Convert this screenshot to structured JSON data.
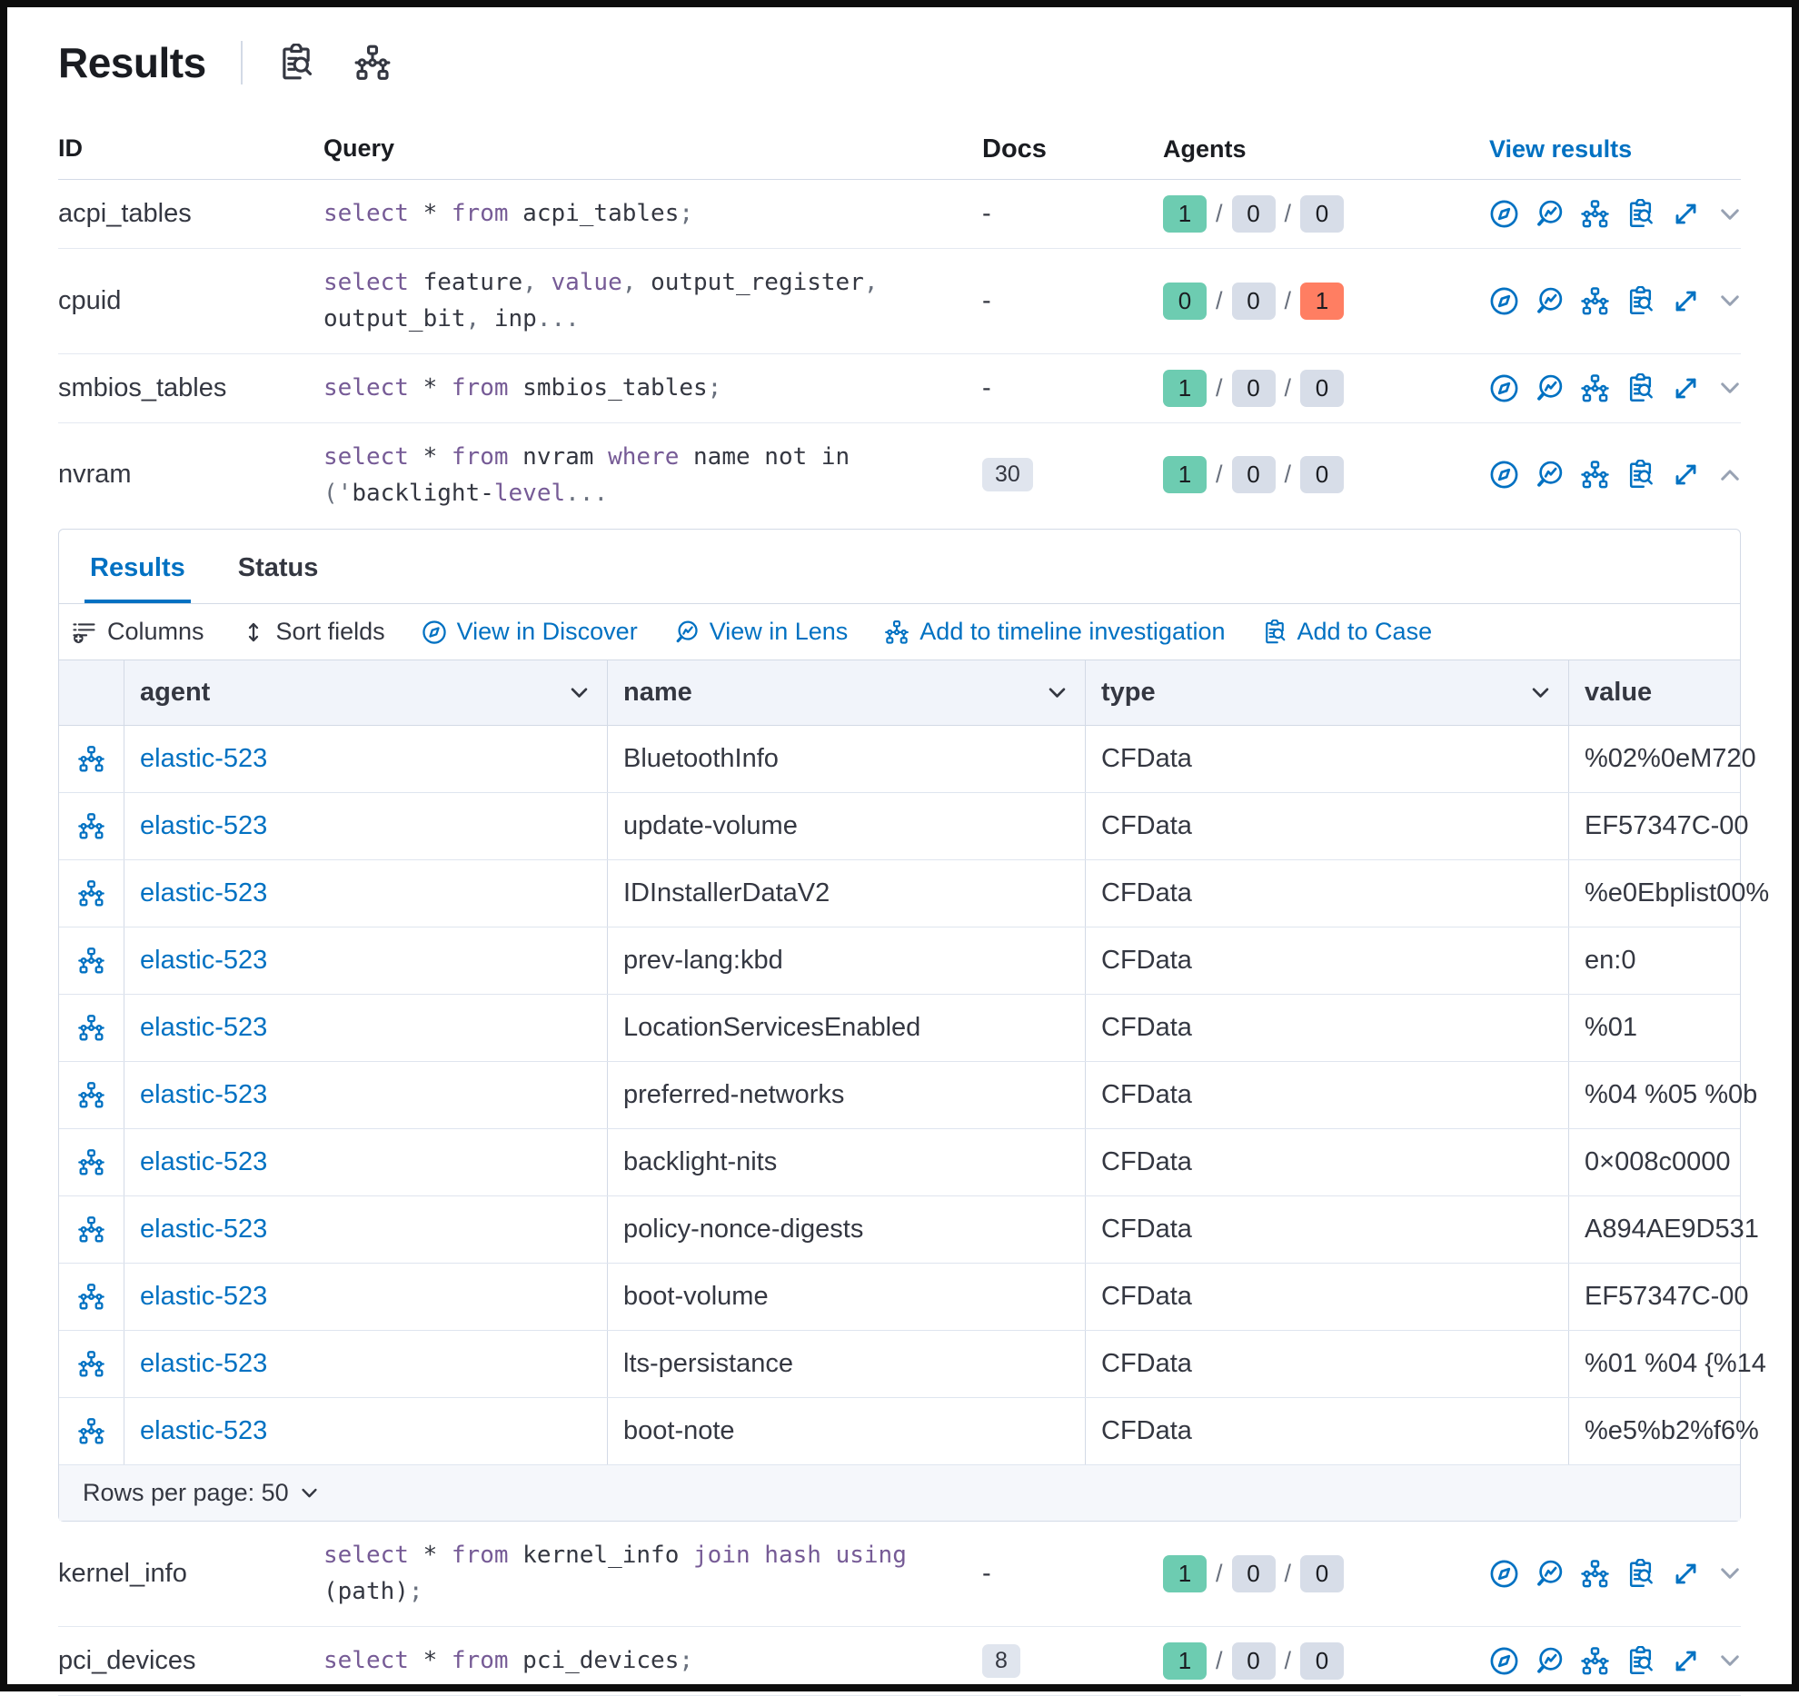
{
  "page": {
    "title": "Results"
  },
  "colors": {
    "primary_blue": "#0071C2",
    "success_badge": "#6DCCB1",
    "neutral_badge": "#D7DDE8",
    "danger_badge": "#FF7E62",
    "sql_keyword": "#765B96"
  },
  "table": {
    "columns": {
      "id": "ID",
      "query": "Query",
      "docs": "Docs",
      "agents": "Agents",
      "view": "View results"
    },
    "rows": [
      {
        "id": "acpi_tables",
        "docs": "-",
        "agents": {
          "success": "1",
          "pending": "0",
          "failed": "0"
        },
        "query": [
          {
            "x": "select",
            "y": "k"
          },
          {
            "x": " * ",
            "y": "p"
          },
          {
            "x": "from",
            "y": "k"
          },
          {
            "x": " acpi_tables",
            "y": "p"
          },
          {
            "x": ";",
            "y": "g"
          }
        ]
      },
      {
        "id": "cpuid",
        "docs": "-",
        "agents": {
          "success": "0",
          "pending": "0",
          "failed": "1"
        },
        "query": [
          {
            "x": "select",
            "y": "k"
          },
          {
            "x": " feature",
            "y": "p"
          },
          {
            "x": ", ",
            "y": "g"
          },
          {
            "x": "value",
            "y": "k"
          },
          {
            "x": ", ",
            "y": "g"
          },
          {
            "x": "output_register",
            "y": "p"
          },
          {
            "x": ",\n",
            "y": "g"
          },
          {
            "x": "output_bit",
            "y": "p"
          },
          {
            "x": ", ",
            "y": "g"
          },
          {
            "x": "inp",
            "y": "p"
          },
          {
            "x": "...",
            "y": "g"
          }
        ]
      },
      {
        "id": "smbios_tables",
        "docs": "-",
        "agents": {
          "success": "1",
          "pending": "0",
          "failed": "0"
        },
        "query": [
          {
            "x": "select",
            "y": "k"
          },
          {
            "x": " * ",
            "y": "p"
          },
          {
            "x": "from",
            "y": "k"
          },
          {
            "x": " smbios_tables",
            "y": "p"
          },
          {
            "x": ";",
            "y": "g"
          }
        ]
      },
      {
        "id": "nvram",
        "docs": "30",
        "agents": {
          "success": "1",
          "pending": "0",
          "failed": "0"
        },
        "query": [
          {
            "x": "select",
            "y": "k"
          },
          {
            "x": " * ",
            "y": "p"
          },
          {
            "x": "from",
            "y": "k"
          },
          {
            "x": " nvram ",
            "y": "p"
          },
          {
            "x": "where",
            "y": "k"
          },
          {
            "x": " name not in\n",
            "y": "p"
          },
          {
            "x": "('",
            "y": "g"
          },
          {
            "x": "backlight-",
            "y": "p"
          },
          {
            "x": "level",
            "y": "k"
          },
          {
            "x": "...",
            "y": "g"
          }
        ]
      },
      {
        "id": "kernel_info",
        "docs": "-",
        "agents": {
          "success": "1",
          "pending": "0",
          "failed": "0"
        },
        "query": [
          {
            "x": "select",
            "y": "k"
          },
          {
            "x": " * ",
            "y": "p"
          },
          {
            "x": "from",
            "y": "k"
          },
          {
            "x": " kernel_info ",
            "y": "p"
          },
          {
            "x": "join",
            "y": "k"
          },
          {
            "x": " ",
            "y": "p"
          },
          {
            "x": "hash",
            "y": "k"
          },
          {
            "x": " ",
            "y": "p"
          },
          {
            "x": "using",
            "y": "k"
          },
          {
            "x": " (path)",
            "y": "p"
          },
          {
            "x": ";",
            "y": "g"
          }
        ]
      },
      {
        "id": "pci_devices",
        "docs": "8",
        "agents": {
          "success": "1",
          "pending": "0",
          "failed": "0"
        },
        "query": [
          {
            "x": "select",
            "y": "k"
          },
          {
            "x": " * ",
            "y": "p"
          },
          {
            "x": "from",
            "y": "k"
          },
          {
            "x": " pci_devices",
            "y": "p"
          },
          {
            "x": ";",
            "y": "g"
          }
        ]
      }
    ]
  },
  "panel": {
    "tabs": [
      {
        "label": "Results"
      },
      {
        "label": "Status"
      }
    ],
    "toolbar": [
      {
        "label": "Columns"
      },
      {
        "label": "Sort fields"
      },
      {
        "label": "View in Discover"
      },
      {
        "label": "View in Lens"
      },
      {
        "label": "Add to timeline investigation"
      },
      {
        "label": "Add to Case"
      }
    ],
    "grid": {
      "columns": [
        {
          "label": "agent"
        },
        {
          "label": "name"
        },
        {
          "label": "type"
        },
        {
          "label": "value"
        }
      ],
      "rows": [
        {
          "agent": "elastic-523",
          "name": "BluetoothInfo",
          "type": "CFData",
          "value": "%02%0eM720"
        },
        {
          "agent": "elastic-523",
          "name": "update-volume",
          "type": "CFData",
          "value": "EF57347C-00"
        },
        {
          "agent": "elastic-523",
          "name": "IDInstallerDataV2",
          "type": "CFData",
          "value": "%e0Ebplist00%"
        },
        {
          "agent": "elastic-523",
          "name": "prev-lang:kbd",
          "type": "CFData",
          "value": "en:0"
        },
        {
          "agent": "elastic-523",
          "name": "LocationServicesEnabled",
          "type": "CFData",
          "value": "%01"
        },
        {
          "agent": "elastic-523",
          "name": "preferred-networks",
          "type": "CFData",
          "value": "%04 %05 %0b"
        },
        {
          "agent": "elastic-523",
          "name": "backlight-nits",
          "type": "CFData",
          "value": "0×008c0000"
        },
        {
          "agent": "elastic-523",
          "name": "policy-nonce-digests",
          "type": "CFData",
          "value": "A894AE9D531"
        },
        {
          "agent": "elastic-523",
          "name": "boot-volume",
          "type": "CFData",
          "value": "EF57347C-00"
        },
        {
          "agent": "elastic-523",
          "name": "lts-persistance",
          "type": "CFData",
          "value": "%01 %04 {%14"
        },
        {
          "agent": "elastic-523",
          "name": "boot-note",
          "type": "CFData",
          "value": "%e5%b2%f6%"
        }
      ],
      "rows_per_page_label": "Rows per page: 50"
    }
  }
}
